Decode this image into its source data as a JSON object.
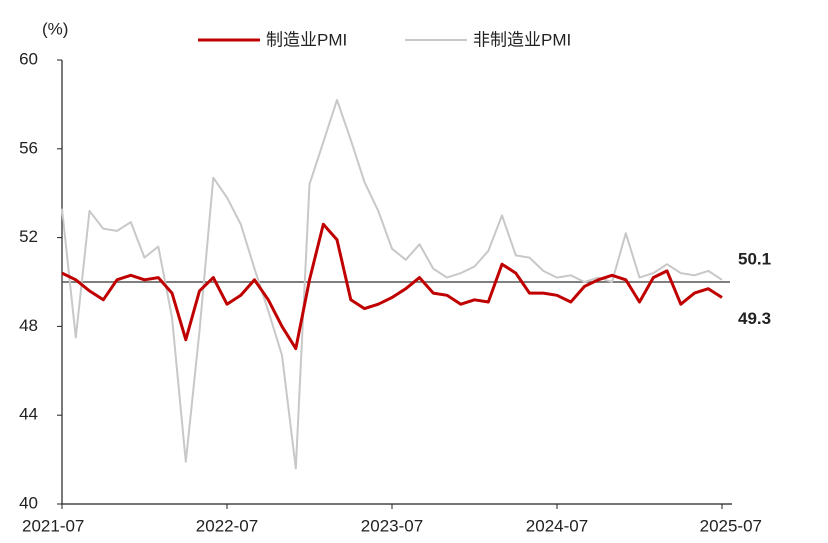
{
  "chart_data": {
    "type": "line",
    "y_label": "(%)",
    "categories": [
      "2021-07",
      null,
      null,
      null,
      null,
      null,
      null,
      null,
      null,
      null,
      null,
      null,
      "2022-07",
      null,
      null,
      null,
      null,
      null,
      null,
      null,
      null,
      null,
      null,
      null,
      "2023-07",
      null,
      null,
      null,
      null,
      null,
      null,
      null,
      null,
      null,
      null,
      null,
      "2024-07",
      null,
      null,
      null,
      null,
      null,
      null,
      null,
      null,
      null,
      null,
      null,
      "2025-07"
    ],
    "series": [
      {
        "name": "制造业PMI",
        "color": "#c00000",
        "label_color": "#c00000",
        "values": [
          50.4,
          50.1,
          49.6,
          49.2,
          50.1,
          50.3,
          50.1,
          50.2,
          49.5,
          47.4,
          49.6,
          50.2,
          49.0,
          49.4,
          50.1,
          49.2,
          48.0,
          47.0,
          50.1,
          52.6,
          51.9,
          49.2,
          48.8,
          49.0,
          49.3,
          49.7,
          50.2,
          49.5,
          49.4,
          49.0,
          49.2,
          49.1,
          50.8,
          50.4,
          49.5,
          49.5,
          49.4,
          49.1,
          49.8,
          50.1,
          50.3,
          50.1,
          49.1,
          50.2,
          50.5,
          49.0,
          49.5,
          49.7,
          49.3
        ]
      },
      {
        "name": "非制造业PMI",
        "color": "#c8c8c8",
        "label_color": "#222222",
        "values": [
          53.3,
          47.5,
          53.2,
          52.4,
          52.3,
          52.7,
          51.1,
          51.6,
          48.4,
          41.9,
          47.8,
          54.7,
          53.8,
          52.6,
          50.6,
          48.7,
          46.7,
          41.6,
          54.4,
          56.3,
          58.2,
          56.4,
          54.5,
          53.2,
          51.5,
          51.0,
          51.7,
          50.6,
          50.2,
          50.4,
          50.7,
          51.4,
          53.0,
          51.2,
          51.1,
          50.5,
          50.2,
          50.3,
          50.0,
          50.2,
          50.0,
          52.2,
          50.2,
          50.4,
          50.8,
          50.4,
          50.3,
          50.5,
          50.1
        ]
      }
    ],
    "ylim": [
      40,
      60
    ],
    "yticks": [
      40,
      44,
      48,
      52,
      56,
      60
    ],
    "reference_line": 50,
    "label_last": true,
    "grid": false
  }
}
